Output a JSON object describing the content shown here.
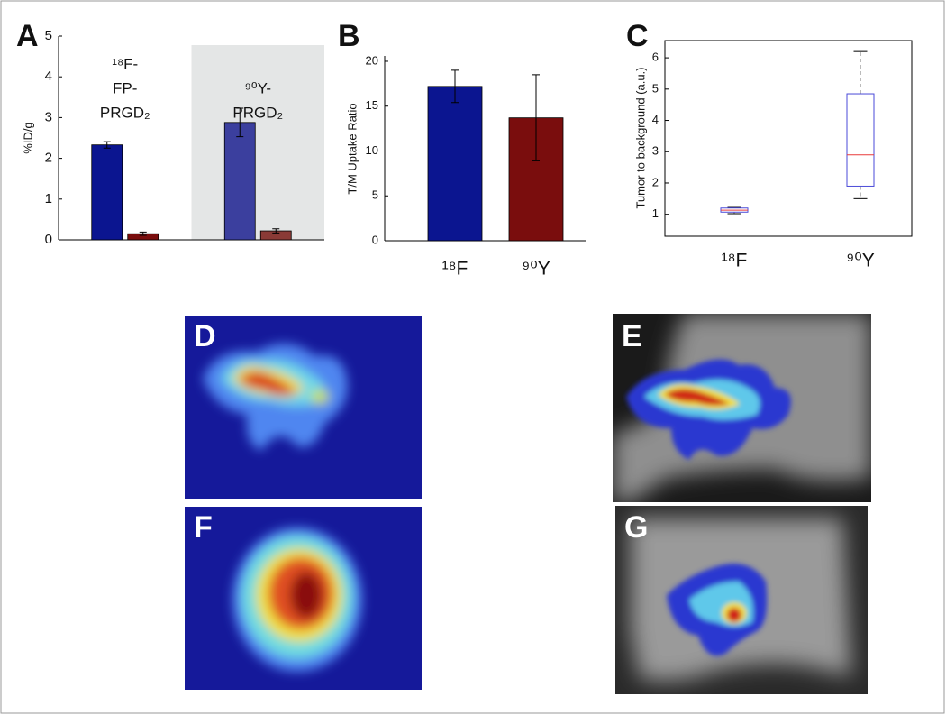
{
  "chart_data": [
    {
      "type": "bar",
      "panel": "A",
      "y_label": "%ID/g",
      "categories": [
        [
          "¹⁸F-",
          "FP-",
          "PRGD₂"
        ],
        [
          "⁹⁰Y-",
          "PRGD₂"
        ]
      ],
      "series": [
        {
          "colors": [
            "#0b1590",
            "#3b3f9e"
          ],
          "values": [
            2.33,
            2.88
          ],
          "errors": [
            0.08,
            0.35
          ]
        },
        {
          "colors": [
            "#7a0d0d",
            "#8a3a36"
          ],
          "values": [
            0.15,
            0.22
          ],
          "errors": [
            0.04,
            0.05
          ]
        }
      ],
      "shaded_category": 1,
      "shade_color": "#e4e6e6",
      "ylim": [
        0,
        5
      ],
      "yticks": [
        0,
        1,
        2,
        3,
        4,
        5
      ]
    },
    {
      "type": "bar",
      "panel": "B",
      "y_label": "T/M Uptake Ratio",
      "categories": [
        "¹⁸F",
        "⁹⁰Y"
      ],
      "series": [
        {
          "colors": [
            "#0b1590",
            "#7a0d0d"
          ],
          "values": [
            17.2,
            13.7
          ],
          "errors": [
            1.8,
            4.8
          ]
        }
      ],
      "ylim": [
        0,
        20.6
      ],
      "yticks": [
        0,
        5,
        10,
        15,
        20
      ]
    },
    {
      "type": "box",
      "panel": "C",
      "y_label": "Tumor to background (a.u.)",
      "categories": [
        "¹⁸F",
        "⁹⁰Y"
      ],
      "boxes": [
        {
          "min": 1.02,
          "q1": 1.07,
          "median": 1.13,
          "q3": 1.2,
          "max": 1.22
        },
        {
          "min": 1.5,
          "q1": 1.9,
          "median": 2.9,
          "q3": 4.85,
          "max": 6.2
        }
      ],
      "box_color": "#4a4ad8",
      "median_color": "#e83a3a",
      "whisker_color": "#777777",
      "ylim": [
        0.3,
        6.55
      ],
      "yticks": [
        1,
        2,
        3,
        4,
        5,
        6
      ]
    }
  ],
  "panels": [
    {
      "label": "D"
    },
    {
      "label": "E"
    },
    {
      "label": "F"
    },
    {
      "label": "G"
    }
  ]
}
